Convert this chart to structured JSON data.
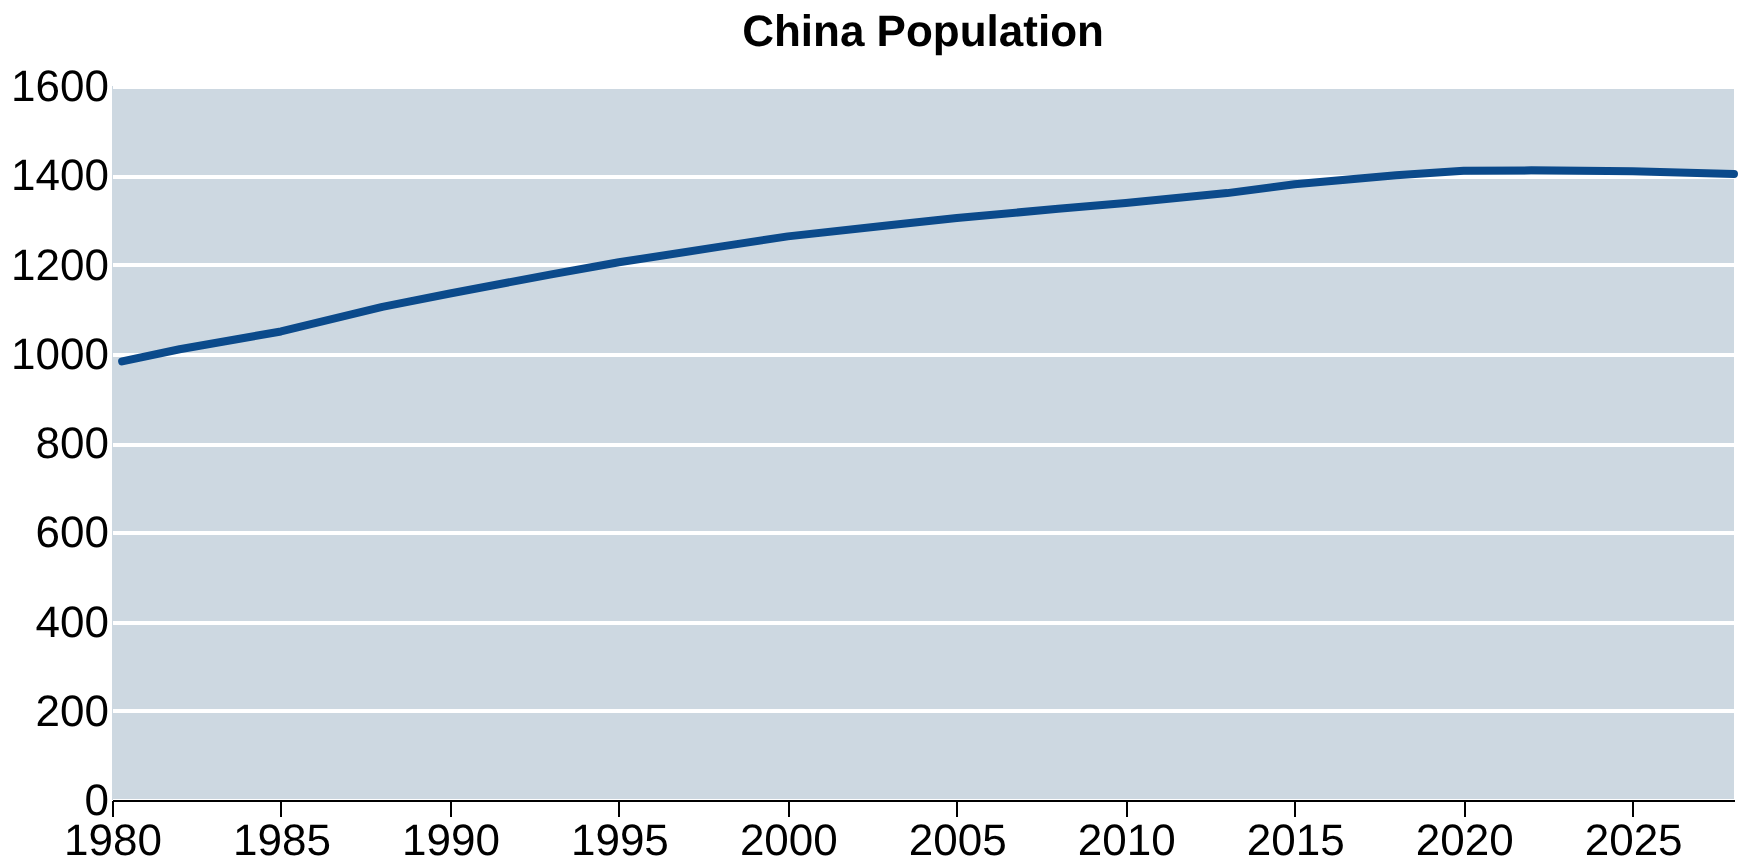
{
  "chart_data": {
    "type": "line",
    "title": "China Population",
    "x": [
      1980.3,
      1982,
      1985,
      1988,
      1990,
      1993,
      1995,
      1998,
      2000,
      2003,
      2005,
      2008,
      2010,
      2013,
      2015,
      2018,
      2020,
      2022,
      2025,
      2028
    ],
    "series": [
      {
        "color": "#0b4a8b",
        "values": [
          983,
          1010,
          1050,
          1105,
          1135,
          1178,
          1205,
          1240,
          1263,
          1288,
          1304,
          1325,
          1338,
          1360,
          1380,
          1400,
          1410,
          1411,
          1409,
          1403
        ]
      }
    ],
    "xlim": [
      1980,
      2028
    ],
    "xticks": [
      1980,
      1985,
      1990,
      1995,
      2000,
      2005,
      2010,
      2015,
      2020,
      2025
    ],
    "ylim": [
      0,
      1600
    ],
    "yticks": [
      0,
      200,
      400,
      600,
      800,
      1000,
      1200,
      1400,
      1600
    ],
    "grid": "y",
    "legend": false,
    "marker": "none",
    "line_style": "solid"
  }
}
